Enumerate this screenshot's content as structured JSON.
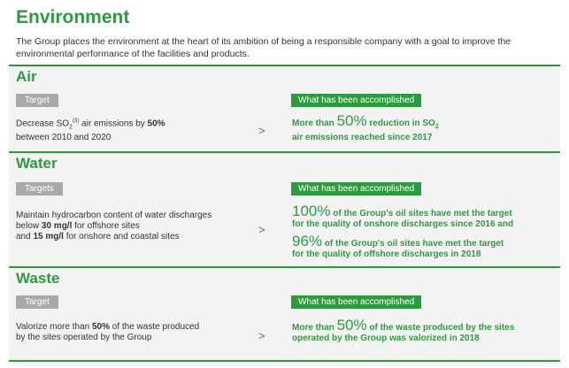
{
  "title": "Environment",
  "intro": "The Group places the environment at the heart of its ambition of being a responsible company with a goal to improve the environmental performance of the facilities and products.",
  "accomplished_label": "What has been accomplished",
  "arrow": ">",
  "air": {
    "title": "Air",
    "target_label": "Target",
    "target_pre": "Decrease SO",
    "target_sub": "2",
    "target_sup": "(3)",
    "target_mid": " air emissions by ",
    "target_bold": "50%",
    "target_post": "between 2010 and 2020",
    "result_pre": "More than ",
    "result_big": "50%",
    "result_mid": " reduction in SO",
    "result_sub": "2",
    "result_post": "air emissions reached since 2017"
  },
  "water": {
    "title": "Water",
    "target_label": "Targets",
    "target_line1": "Maintain hydrocarbon content of water discharges",
    "target_line2_pre": "below ",
    "target_line2_bold": "30 mg/l",
    "target_line2_post": " for offshore sites",
    "target_line3_pre": "and ",
    "target_line3_bold": "15 mg/l",
    "target_line3_post": " for onshore and coastal sites",
    "result1_big": "100%",
    "result1_line1": " of the Group's oil sites have met the target",
    "result1_line2": "for the quality of onshore discharges since 2016 and",
    "result2_big": "96%",
    "result2_line1": " of the Group's oil sites have met the target",
    "result2_line2": "for the quality of offshore discharges in 2018"
  },
  "waste": {
    "title": "Waste",
    "target_label": "Target",
    "target_pre": "Valorize more than ",
    "target_bold": "50%",
    "target_mid": " of the waste produced",
    "target_post": "by the sites operated by the Group",
    "result_pre": "More than ",
    "result_big": "50%",
    "result_mid": " of the waste produced by the sites",
    "result_post": "operated by the Group was valorized in 2018"
  },
  "colors": {
    "accent": "#2e9a3f",
    "tag_grey": "#a9a9a9",
    "section_bg": "#f3f3f3"
  }
}
